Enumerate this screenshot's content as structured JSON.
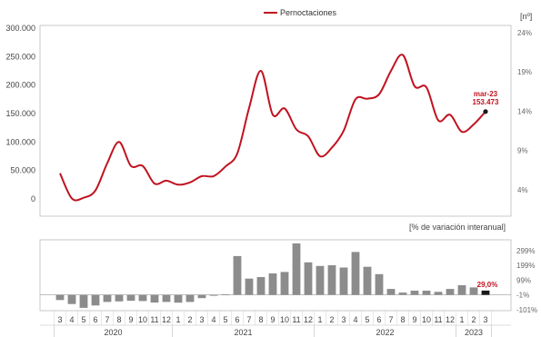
{
  "chart_data": [
    {
      "type": "line",
      "legend": "Pernoctaciones",
      "legend_position": "top-center",
      "y2_unit": "[nº]",
      "ylim": [
        -20000,
        300000
      ],
      "yticks": [
        "300.000",
        "250.000",
        "200.000",
        "150.000",
        "100.000",
        "50.000",
        "0"
      ],
      "y2_ticks": [
        "24%",
        "19%",
        "14%",
        "9%",
        "4%"
      ],
      "color": "#c0121f",
      "series": [
        {
          "values": [
            45000,
            1000,
            2000,
            15000,
            63000,
            100000,
            58000,
            58000,
            27000,
            32000,
            25000,
            29000,
            40000,
            40000,
            57000,
            80000,
            160000,
            225000,
            148000,
            159000,
            122000,
            110000,
            75000,
            90000,
            120000,
            175000,
            176000,
            184000,
            225000,
            253000,
            198000,
            196000,
            138000,
            148000,
            118000,
            131000,
            153473
          ]
        }
      ],
      "annotation": {
        "label": "mar-23",
        "value": "153.473"
      }
    },
    {
      "type": "bar",
      "unit_label": "[% de variación interanual]",
      "ylim": [
        -101,
        360
      ],
      "y2_ticks": [
        "299%",
        "199%",
        "99%",
        "-1%",
        "-101%"
      ],
      "categories": [
        "3",
        "4",
        "5",
        "6",
        "7",
        "8",
        "9",
        "10",
        "11",
        "12",
        "1",
        "2",
        "3",
        "4",
        "5",
        "6",
        "7",
        "8",
        "9",
        "10",
        "11",
        "12",
        "1",
        "2",
        "3",
        "4",
        "5",
        "6",
        "7",
        "8",
        "9",
        "10",
        "11",
        "12",
        "1",
        "2",
        "3"
      ],
      "years": [
        "2020",
        "2021",
        "2022",
        "2023"
      ],
      "values": [
        -35,
        -62,
        -88,
        -72,
        -48,
        -44,
        -40,
        -42,
        -52,
        -48,
        -53,
        -48,
        -22,
        -6,
        3,
        262,
        110,
        120,
        145,
        155,
        348,
        220,
        195,
        200,
        185,
        290,
        190,
        140,
        40,
        15,
        28,
        28,
        20,
        40,
        65,
        50,
        29
      ],
      "highlight_label": "29,0%"
    }
  ]
}
